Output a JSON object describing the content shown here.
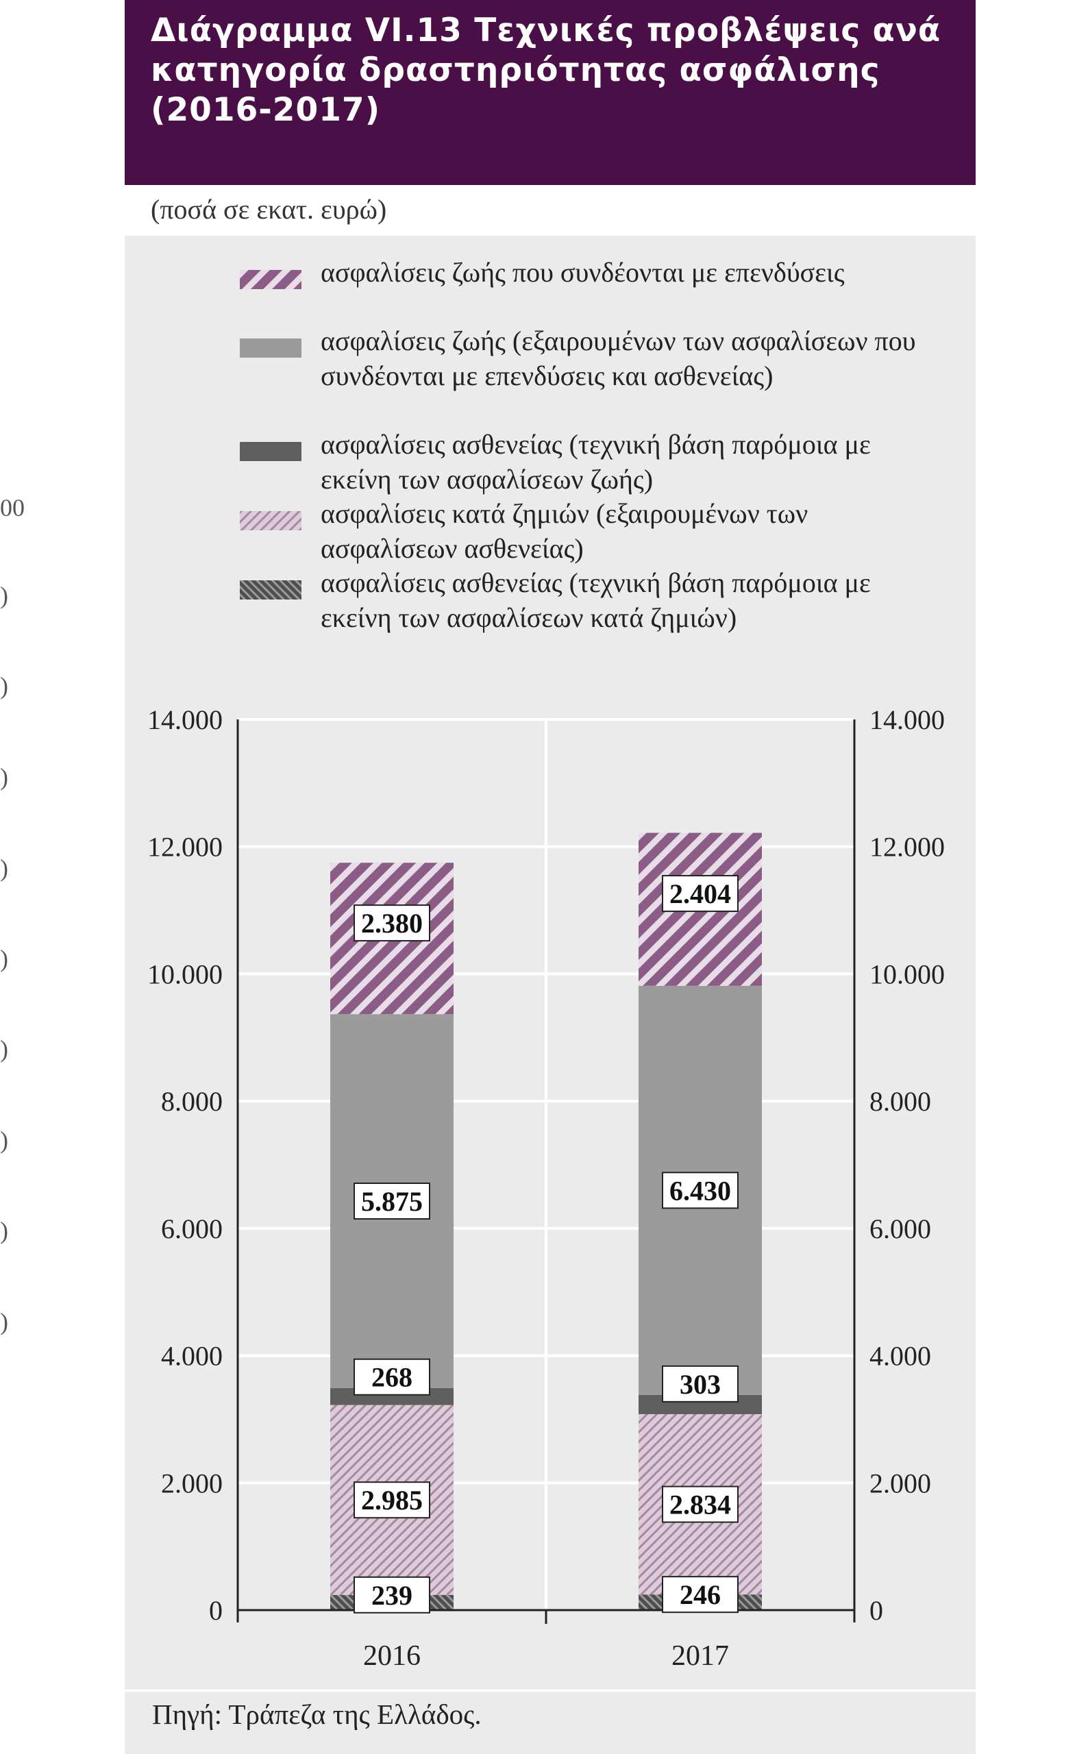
{
  "header": {
    "title": "Διάγραμμα VI.13 Τεχνικές προβλέψεις ανά κατηγορία δραστηριότητας ασφάλισης (2016-2017)",
    "units": "(ποσά σε εκατ. ευρώ)"
  },
  "left_edge_ticks": [
    "00",
    ")",
    ")",
    ")",
    ")",
    ")",
    ")",
    ")",
    ")",
    ")"
  ],
  "legend": [
    {
      "label": "ασφαλίσεις ζωής που συνδέονται με επενδύσεις",
      "color": "#8b5c86",
      "pattern": "hatch-purple-dark"
    },
    {
      "label": "ασφαλίσεις ζωής (εξαιρουμένων των ασφαλίσεων που συνδέονται με επενδύσεις και ασθενείας)",
      "color": "#9b9b9b",
      "pattern": "solid-gray"
    },
    {
      "label": "ασφαλίσεις ασθενείας (τεχνική βάση παρόμοια με εκείνη των ασφαλίσεων ζωής)",
      "color": "#5f5f5f",
      "pattern": "solid-dark-gray"
    },
    {
      "label": "ασφαλίσεις κατά ζημιών (εξαιρουμένων των ασφαλίσεων ασθενείας)",
      "color": "#c9b3c8",
      "pattern": "hatch-purple-light"
    },
    {
      "label": "ασφαλίσεις ασθενείας (τεχνική βάση παρόμοια με εκείνη των ασφαλίσεων κατά ζημιών)",
      "color": "#6e6e6e",
      "pattern": "hatch-gray-dark"
    }
  ],
  "source": "Πηγή: Τράπεζα της Ελλάδος.",
  "chart_data": {
    "type": "bar",
    "stacked": true,
    "categories": [
      "2016",
      "2017"
    ],
    "series": [
      {
        "name": "ασφαλίσεις ασθενείας (τεχνική βάση παρόμοια με εκείνη των ασφαλίσεων κατά ζημιών)",
        "values": [
          239,
          246
        ],
        "labels": [
          "239",
          "246"
        ]
      },
      {
        "name": "ασφαλίσεις κατά ζημιών (εξαιρουμένων των ασφαλίσεων ασθενείας)",
        "values": [
          2985,
          2834
        ],
        "labels": [
          "2.985",
          "2.834"
        ]
      },
      {
        "name": "ασφαλίσεις ασθενείας (τεχνική βάση παρόμοια με εκείνη των ασφαλίσεων ζωής)",
        "values": [
          268,
          303
        ],
        "labels": [
          "268",
          "303"
        ]
      },
      {
        "name": "ασφαλίσεις ζωής (εξαιρουμένων των ασφαλίσεων που συνδέονται με επενδύσεις και ασθενείας)",
        "values": [
          5875,
          6430
        ],
        "labels": [
          "5.875",
          "6.430"
        ]
      },
      {
        "name": "ασφαλίσεις ζωής που συνδέονται με επενδύσεις",
        "values": [
          2380,
          2404
        ],
        "labels": [
          "2.380",
          "2.404"
        ]
      }
    ],
    "ylim": [
      0,
      14000
    ],
    "yticks": [
      0,
      2000,
      4000,
      6000,
      8000,
      10000,
      12000,
      14000
    ],
    "ytick_labels": [
      "0",
      "2.000",
      "4.000",
      "6.000",
      "8.000",
      "10.000",
      "12.000",
      "14.000"
    ],
    "secondary_axis": true,
    "grid": true,
    "legend_position": "top"
  }
}
